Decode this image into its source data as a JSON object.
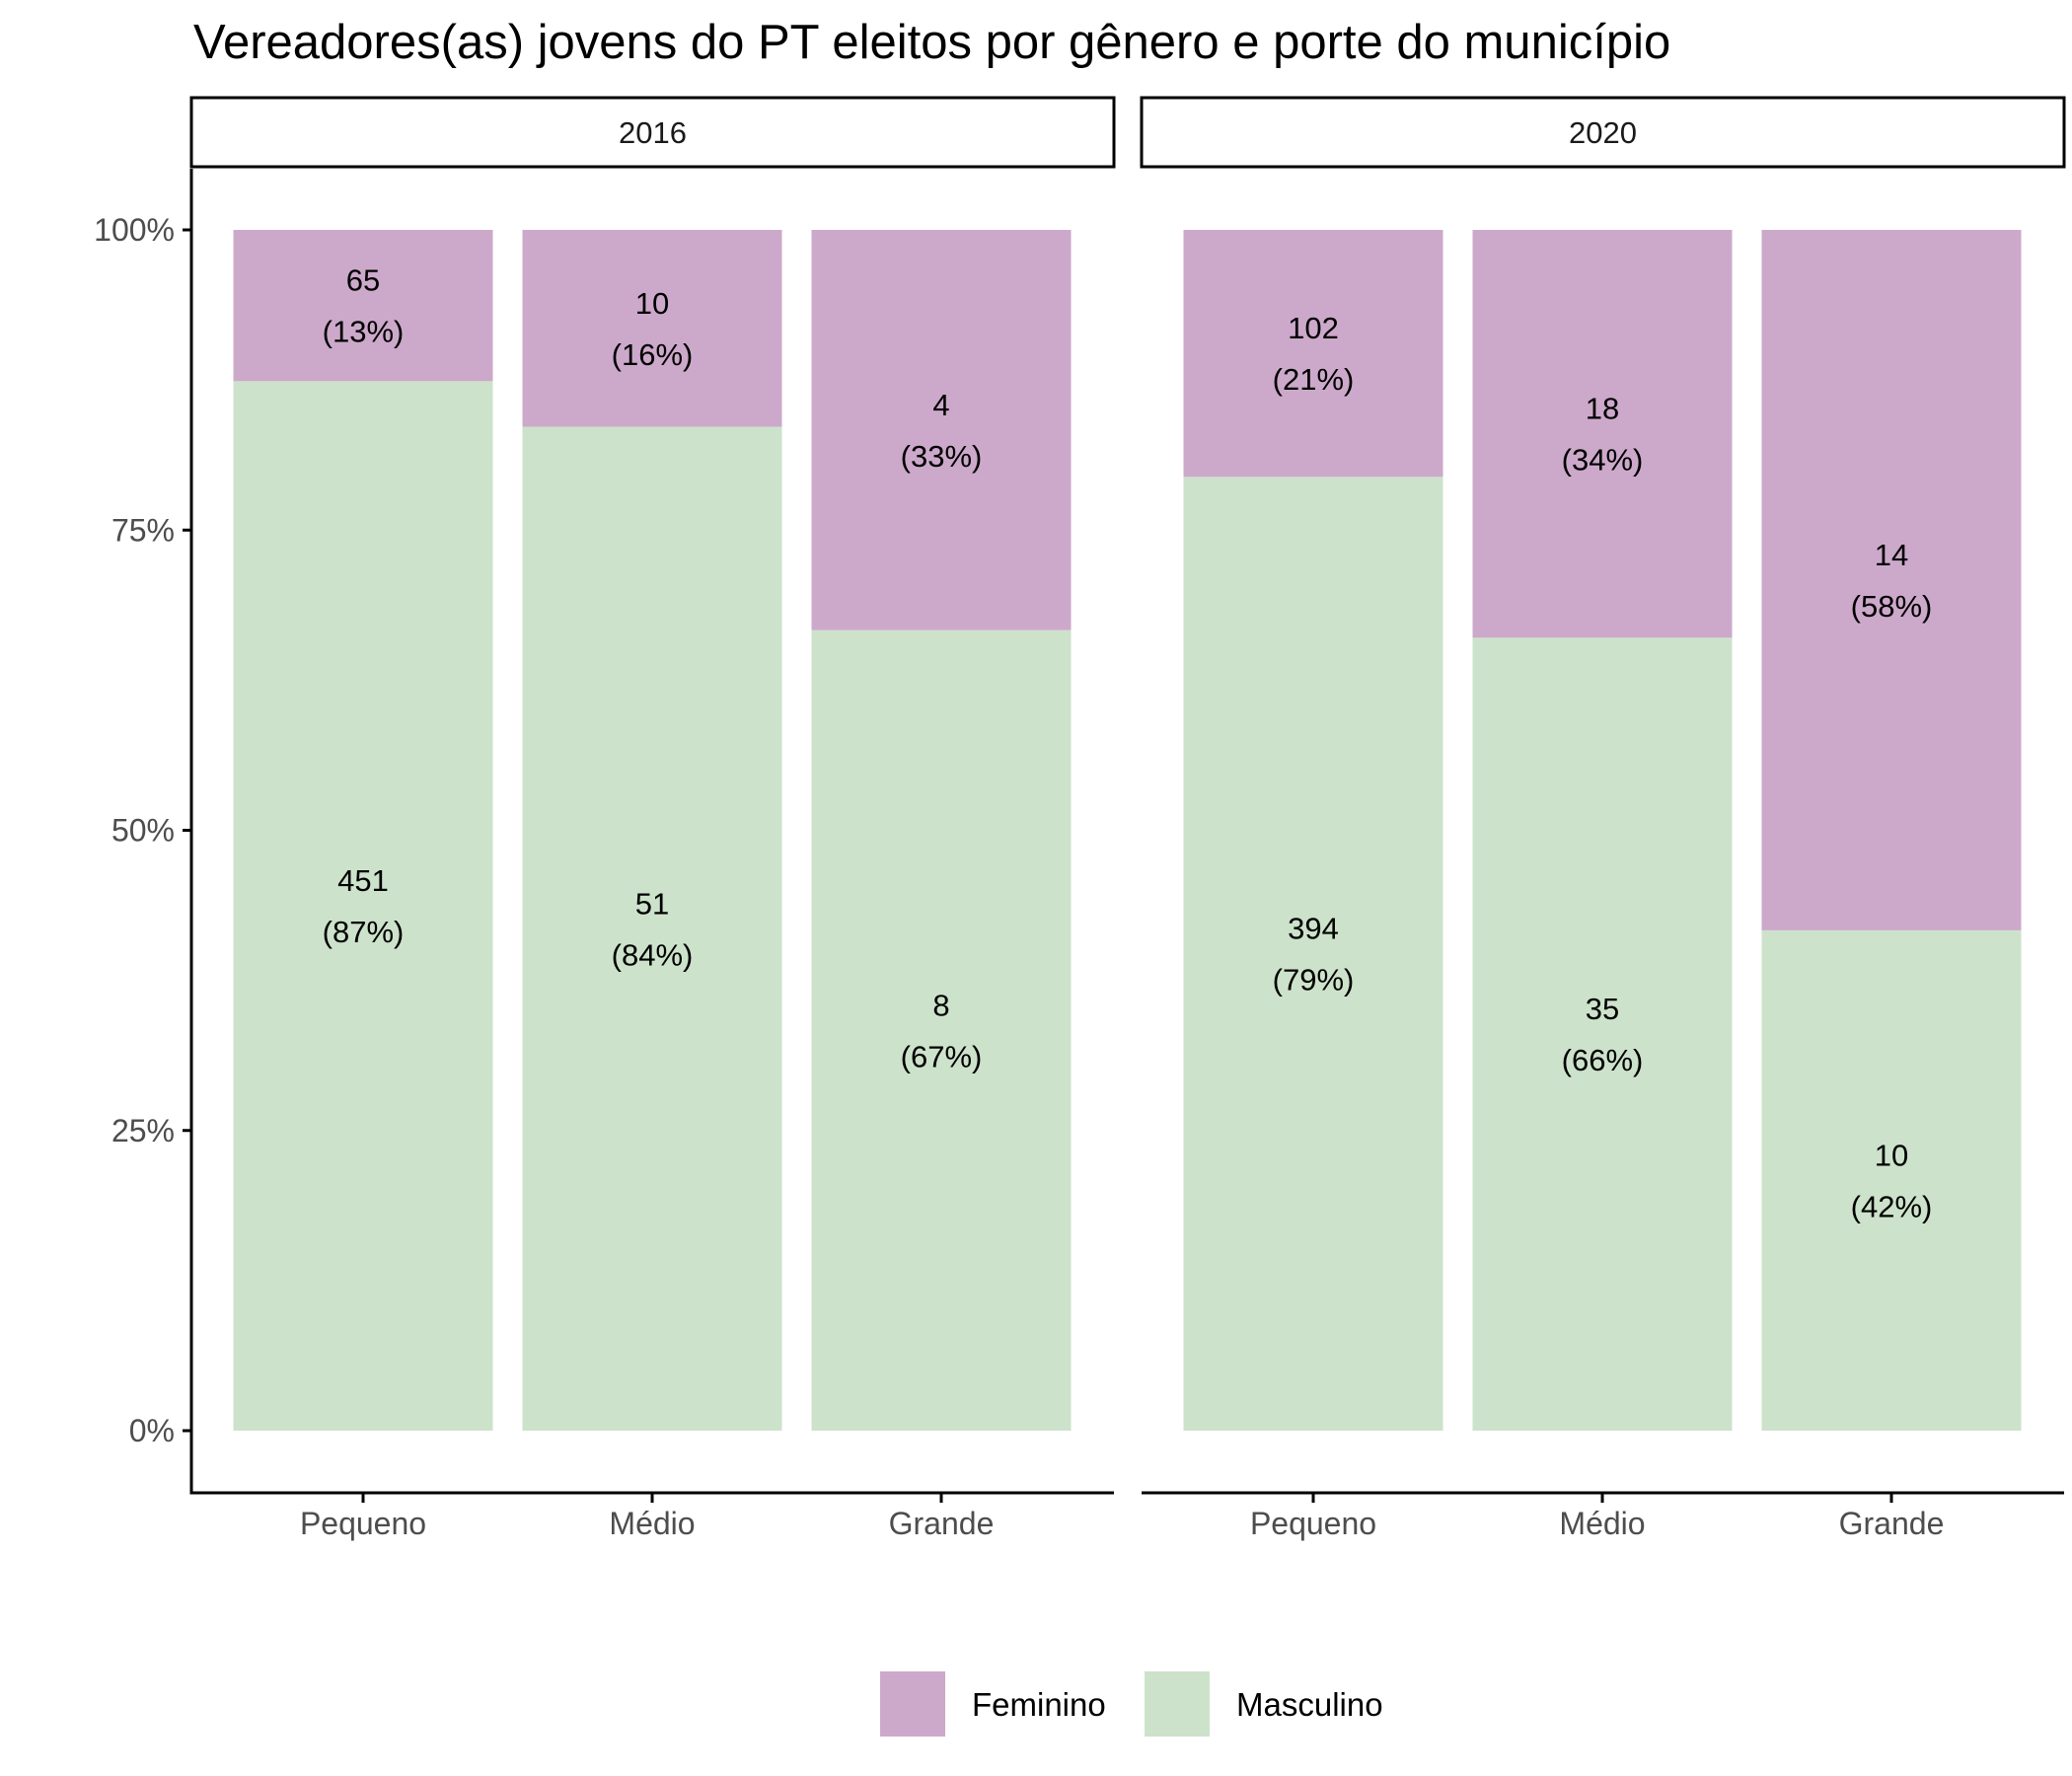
{
  "colors": {
    "Feminino": "#cca9ca",
    "Masculino": "#cde2cb",
    "axis": "#000000",
    "tick_text": "#4d4d4d"
  },
  "chart_data": {
    "type": "bar",
    "stacked": true,
    "normalized": true,
    "title": "Vereadores(as) jovens do PT eleitos por gênero e porte do município",
    "xlabel": "",
    "ylabel": "",
    "ylim": [
      0,
      1
    ],
    "y_ticks": [
      "0%",
      "25%",
      "50%",
      "75%",
      "100%"
    ],
    "categories": [
      "Pequeno",
      "Médio",
      "Grande"
    ],
    "stack_order": [
      "Masculino",
      "Feminino"
    ],
    "legend": {
      "position": "bottom",
      "entries": [
        "Feminino",
        "Masculino"
      ]
    },
    "grid": false,
    "panels": [
      {
        "facet": "2016",
        "series": [
          {
            "name": "Feminino",
            "values": [
              65,
              10,
              4
            ],
            "pct_labels": [
              "(13%)",
              "(16%)",
              "(33%)"
            ]
          },
          {
            "name": "Masculino",
            "values": [
              451,
              51,
              8
            ],
            "pct_labels": [
              "(87%)",
              "(84%)",
              "(67%)"
            ]
          }
        ]
      },
      {
        "facet": "2020",
        "series": [
          {
            "name": "Feminino",
            "values": [
              102,
              18,
              14
            ],
            "pct_labels": [
              "(21%)",
              "(34%)",
              "(58%)"
            ]
          },
          {
            "name": "Masculino",
            "values": [
              394,
              35,
              10
            ],
            "pct_labels": [
              "(79%)",
              "(66%)",
              "(42%)"
            ]
          }
        ]
      }
    ]
  }
}
